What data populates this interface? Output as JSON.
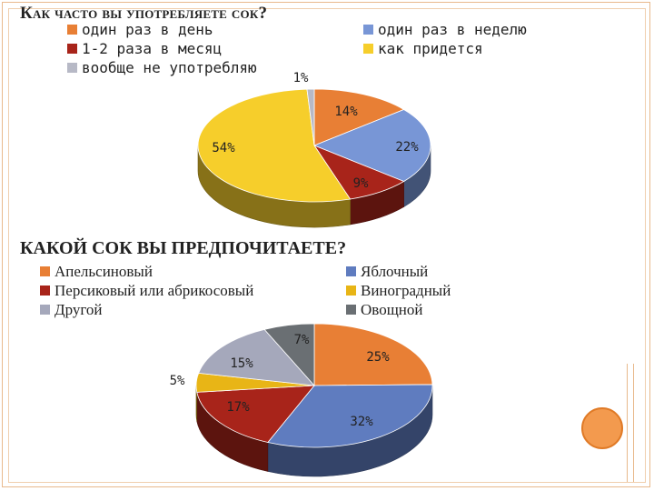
{
  "chart_data": [
    {
      "type": "pie",
      "title": "Как часто вы употребляете сок?",
      "categories": [
        "один раз в день",
        "один раз в неделю",
        "1-2 раза в месяц",
        "как придется",
        "вообще не употребляю"
      ],
      "values": [
        14,
        22,
        9,
        54,
        1
      ],
      "labels": [
        "14%",
        "22%",
        "9%",
        "54%",
        "1%"
      ],
      "colors": [
        "#e87f35",
        "#7896d6",
        "#a8241a",
        "#f6ce2b",
        "#b7b9c6"
      ],
      "legend_position": "top"
    },
    {
      "type": "pie",
      "title": "КАКОЙ СОК ВЫ ПРЕДПОЧИТАЕТЕ?",
      "categories": [
        "Апельсиновый",
        "Яблочный",
        "Персиковый или абрикосовый",
        "Виноградный",
        "Другой",
        "Овощной"
      ],
      "values": [
        25,
        32,
        17,
        5,
        15,
        7
      ],
      "labels": [
        "25%",
        "32%",
        "17%",
        "5%",
        "15%",
        "7%"
      ],
      "colors": [
        "#e87f35",
        "#5f7cbf",
        "#a8241a",
        "#e8b516",
        "#a5a8bb",
        "#6a6f73"
      ],
      "legend_position": "top"
    }
  ]
}
